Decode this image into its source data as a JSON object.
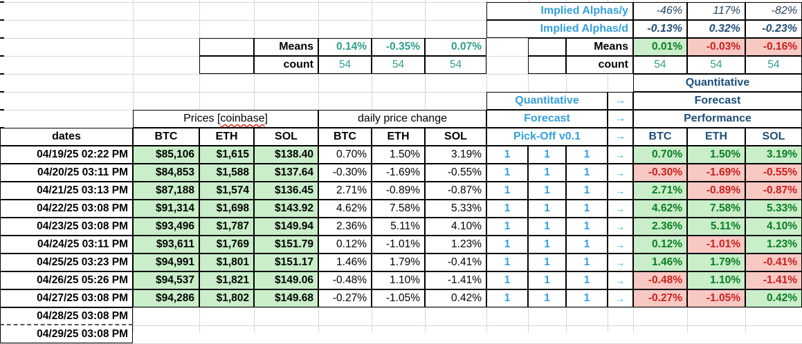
{
  "app": {
    "kind": "spreadsheet-crypto-forecast"
  },
  "colors": {
    "blue": "#34a0dc",
    "navy": "#1f4e79",
    "navy2": "#24435f",
    "teal": "#2f9e8c",
    "green_text": "#0a7d22",
    "red_text": "#c9211e",
    "green_bg": "#c9eec9",
    "red_bg": "#f8c8c3"
  },
  "implied_alphas": {
    "y_label": "Implied Alphas/y",
    "d_label": "Implied Alphas/d",
    "y_values": [
      "-46%",
      "117%",
      "-82%"
    ],
    "d_values": [
      "-0.13%",
      "0.32%",
      "-0.23%"
    ]
  },
  "summary_left": {
    "means_label": "Means",
    "count_label": "count",
    "means": [
      "0.14%",
      "-0.35%",
      "0.07%"
    ],
    "counts": [
      "54",
      "54",
      "54"
    ]
  },
  "summary_right": {
    "means_label": "Means",
    "count_label": "count",
    "means": [
      "0.01%",
      "-0.03%",
      "-0.16%"
    ],
    "counts": [
      "54",
      "54",
      "54"
    ]
  },
  "headers": {
    "dates": "dates",
    "prices_group_prefix": "Prices [",
    "prices_group_word": "coinbase",
    "prices_group_suffix": "]",
    "daily_change_group": "daily price change",
    "price_cols": [
      "BTC",
      "ETH",
      "SOL"
    ],
    "change_cols": [
      "BTC",
      "ETH",
      "SOL"
    ],
    "perf_cols": [
      "BTC",
      "ETH",
      "SOL"
    ],
    "forecast_block": {
      "line1": "Quantitative",
      "line2": "Forecast",
      "line3": "Pick-Off v0.1",
      "arrow": "→"
    },
    "performance_block": {
      "line1": "Quantitative",
      "line2": "Forecast",
      "line3": "Performance"
    }
  },
  "rows": [
    {
      "date": "04/19/25 02:22 PM",
      "prices": [
        "$85,106",
        "$1,615",
        "$138.40"
      ],
      "changes": [
        "0.70%",
        "1.50%",
        "3.19%"
      ],
      "signals": [
        "1",
        "1",
        "1"
      ],
      "arrow": "→",
      "performance": [
        "0.70%",
        "1.50%",
        "3.19%"
      ]
    },
    {
      "date": "04/20/25 03:11 PM",
      "prices": [
        "$84,853",
        "$1,588",
        "$137.64"
      ],
      "changes": [
        "-0.30%",
        "-1.69%",
        "-0.55%"
      ],
      "signals": [
        "1",
        "1",
        "1"
      ],
      "arrow": "→",
      "performance": [
        "-0.30%",
        "-1.69%",
        "-0.55%"
      ]
    },
    {
      "date": "04/21/25 03:13 PM",
      "prices": [
        "$87,188",
        "$1,574",
        "$136.45"
      ],
      "changes": [
        "2.71%",
        "-0.89%",
        "-0.87%"
      ],
      "signals": [
        "1",
        "1",
        "1"
      ],
      "arrow": "→",
      "performance": [
        "2.71%",
        "-0.89%",
        "-0.87%"
      ]
    },
    {
      "date": "04/22/25 03:08 PM",
      "prices": [
        "$91,314",
        "$1,698",
        "$143.92"
      ],
      "changes": [
        "4.62%",
        "7.58%",
        "5.33%"
      ],
      "signals": [
        "1",
        "1",
        "1"
      ],
      "arrow": "→",
      "performance": [
        "4.62%",
        "7.58%",
        "5.33%"
      ]
    },
    {
      "date": "04/23/25 03:08 PM",
      "prices": [
        "$93,496",
        "$1,787",
        "$149.94"
      ],
      "changes": [
        "2.36%",
        "5.11%",
        "4.10%"
      ],
      "signals": [
        "1",
        "1",
        "1"
      ],
      "arrow": "→",
      "performance": [
        "2.36%",
        "5.11%",
        "4.10%"
      ]
    },
    {
      "date": "04/24/25 03:11 PM",
      "prices": [
        "$93,611",
        "$1,769",
        "$151.79"
      ],
      "changes": [
        "0.12%",
        "-1.01%",
        "1.23%"
      ],
      "signals": [
        "1",
        "1",
        "1"
      ],
      "arrow": "→",
      "performance": [
        "0.12%",
        "-1.01%",
        "1.23%"
      ]
    },
    {
      "date": "04/25/25 03:23 PM",
      "prices": [
        "$94,991",
        "$1,801",
        "$151.17"
      ],
      "changes": [
        "1.46%",
        "1.79%",
        "-0.41%"
      ],
      "signals": [
        "1",
        "1",
        "1"
      ],
      "arrow": "→",
      "performance": [
        "1.46%",
        "1.79%",
        "-0.41%"
      ]
    },
    {
      "date": "04/26/25 05:26 PM",
      "prices": [
        "$94,537",
        "$1,821",
        "$149.06"
      ],
      "changes": [
        "-0.48%",
        "1.10%",
        "-1.41%"
      ],
      "signals": [
        "1",
        "1",
        "1"
      ],
      "arrow": "→",
      "performance": [
        "-0.48%",
        "1.10%",
        "-1.41%"
      ]
    },
    {
      "date": "04/27/25 03:08 PM",
      "prices": [
        "$94,286",
        "$1,802",
        "$149.68"
      ],
      "changes": [
        "-0.27%",
        "-1.05%",
        "0.42%"
      ],
      "signals": [
        "1",
        "1",
        "1"
      ],
      "arrow": "→",
      "performance": [
        "-0.27%",
        "-1.05%",
        "0.42%"
      ]
    },
    {
      "date": "04/28/25 03:08 PM",
      "prices": [],
      "changes": [],
      "signals": [],
      "arrow": "",
      "performance": []
    },
    {
      "date": "04/29/25 03:08 PM",
      "prices": [],
      "changes": [],
      "signals": [],
      "arrow": "",
      "performance": []
    }
  ]
}
